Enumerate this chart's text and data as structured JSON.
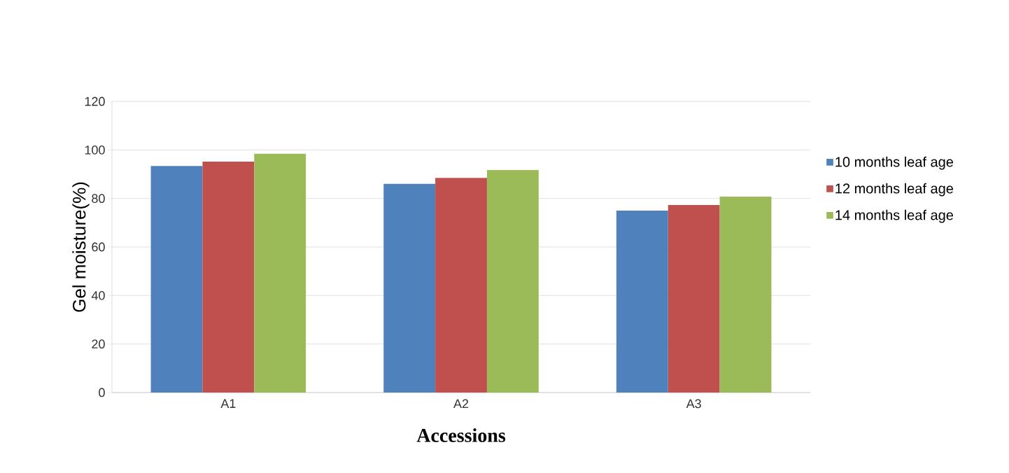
{
  "chart_data": {
    "type": "bar",
    "xlabel": "Accessions",
    "ylabel": "Gel moisture(%)",
    "categories": [
      "A1",
      "A2",
      "A3"
    ],
    "series": [
      {
        "name": "10 months leaf age",
        "color": "#4f81bd",
        "values": [
          93.4,
          86,
          75
        ]
      },
      {
        "name": "12 months leaf age",
        "color": "#c0504d",
        "values": [
          95.2,
          88.5,
          77.3
        ]
      },
      {
        "name": "14 months leaf age",
        "color": "#9bbb59",
        "values": [
          98.4,
          91.7,
          80.8
        ]
      }
    ],
    "ylim": [
      0,
      120
    ],
    "yticks": [
      0,
      20,
      40,
      60,
      80,
      100,
      120
    ],
    "grid": "y",
    "legend": "right"
  }
}
